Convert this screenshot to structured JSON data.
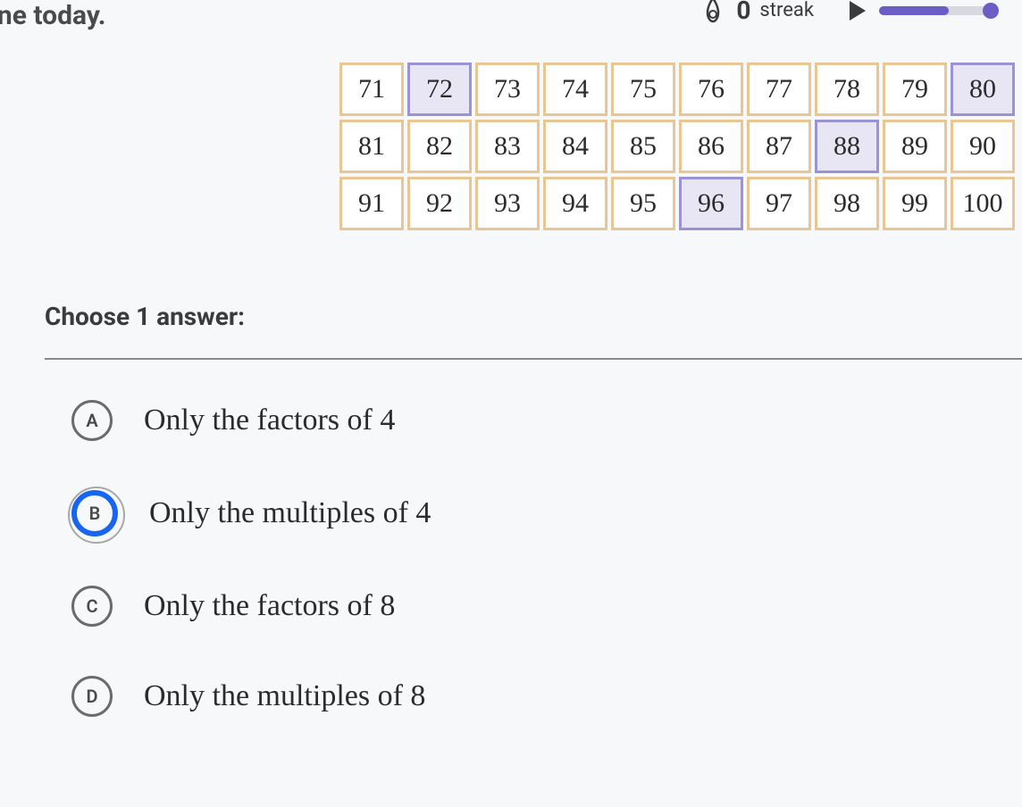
{
  "header": {
    "partial_text": "one today.",
    "streak_label": "streak",
    "streak_count": "0"
  },
  "number_grid": {
    "rows": [
      [
        {
          "value": "71",
          "highlighted": false
        },
        {
          "value": "72",
          "highlighted": true
        },
        {
          "value": "73",
          "highlighted": false
        },
        {
          "value": "74",
          "highlighted": false
        },
        {
          "value": "75",
          "highlighted": false
        },
        {
          "value": "76",
          "highlighted": false
        },
        {
          "value": "77",
          "highlighted": false
        },
        {
          "value": "78",
          "highlighted": false
        },
        {
          "value": "79",
          "highlighted": false
        },
        {
          "value": "80",
          "highlighted": true
        }
      ],
      [
        {
          "value": "81",
          "highlighted": false
        },
        {
          "value": "82",
          "highlighted": false
        },
        {
          "value": "83",
          "highlighted": false
        },
        {
          "value": "84",
          "highlighted": false
        },
        {
          "value": "85",
          "highlighted": false
        },
        {
          "value": "86",
          "highlighted": false
        },
        {
          "value": "87",
          "highlighted": false
        },
        {
          "value": "88",
          "highlighted": true
        },
        {
          "value": "89",
          "highlighted": false
        },
        {
          "value": "90",
          "highlighted": false
        }
      ],
      [
        {
          "value": "91",
          "highlighted": false
        },
        {
          "value": "92",
          "highlighted": false
        },
        {
          "value": "93",
          "highlighted": false
        },
        {
          "value": "94",
          "highlighted": false
        },
        {
          "value": "95",
          "highlighted": false
        },
        {
          "value": "96",
          "highlighted": true
        },
        {
          "value": "97",
          "highlighted": false
        },
        {
          "value": "98",
          "highlighted": false
        },
        {
          "value": "99",
          "highlighted": false
        },
        {
          "value": "100",
          "highlighted": false
        }
      ]
    ],
    "cell_border_color": "#e8c794",
    "cell_highlight_border": "#9b93d8",
    "cell_highlight_bg": "#e8e5f5",
    "cell_bg": "#ffffff"
  },
  "question": {
    "prompt": "Choose 1 answer:",
    "options": [
      {
        "letter": "A",
        "text": "Only the factors of 4",
        "selected": false
      },
      {
        "letter": "B",
        "text": "Only the multiples of 4",
        "selected": true
      },
      {
        "letter": "C",
        "text": "Only the factors of 8",
        "selected": false
      },
      {
        "letter": "D",
        "text": "Only the multiples of 8",
        "selected": false
      }
    ],
    "selected_color": "#1865f2"
  },
  "progress": {
    "percent": 60,
    "fill_color": "#6b5ec7",
    "track_color": "#d8d8e0"
  }
}
